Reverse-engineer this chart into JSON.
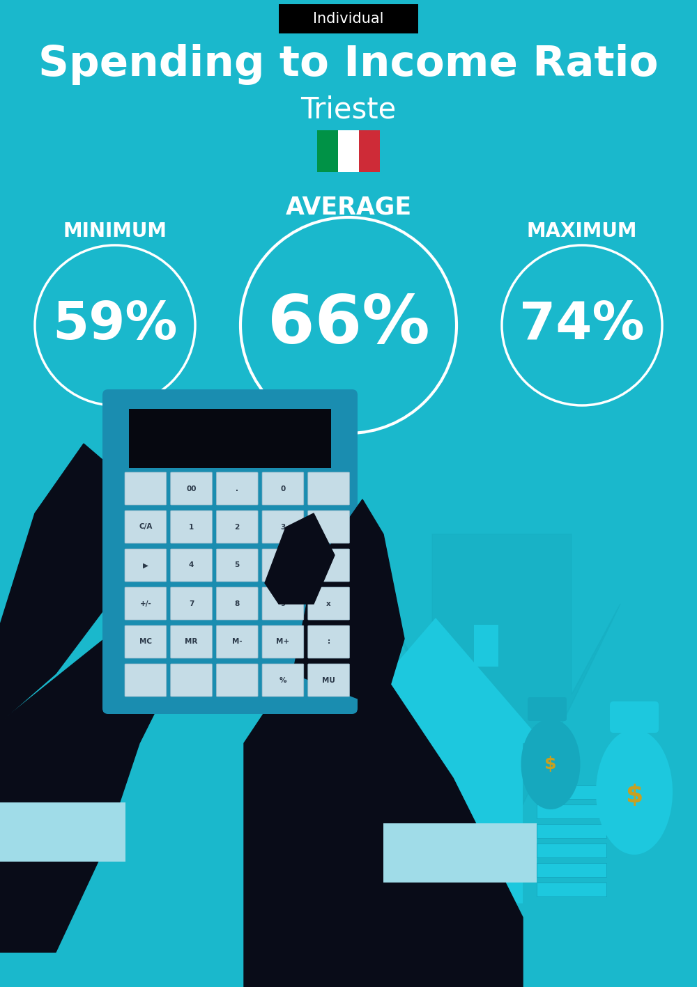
{
  "bg_color": "#1ab8cc",
  "title": "Spending to Income Ratio",
  "subtitle": "Trieste",
  "tag_text": "Individual",
  "tag_bg": "#000000",
  "tag_text_color": "#ffffff",
  "title_color": "#ffffff",
  "subtitle_color": "#ffffff",
  "avg_label": "AVERAGE",
  "min_label": "MINIMUM",
  "max_label": "MAXIMUM",
  "avg_value": "66%",
  "min_value": "59%",
  "max_value": "74%",
  "label_color": "#ffffff",
  "value_color": "#ffffff",
  "circle_color": "#ffffff",
  "title_fontsize": 44,
  "subtitle_fontsize": 30,
  "tag_fontsize": 15,
  "avg_label_fontsize": 25,
  "min_max_label_fontsize": 20,
  "avg_value_fontsize": 70,
  "min_max_value_fontsize": 54,
  "italy_flag_green": "#009246",
  "italy_flag_white": "#ffffff",
  "italy_flag_red": "#ce2b37",
  "arrow_color": "#17aec2",
  "calc_body_color": "#1a8db0",
  "calc_screen_color": "#060810",
  "btn_color": "#c5dce6",
  "btn_border": "#98b8c8",
  "hand_color": "#090c18",
  "cuff_color": "#a0dce8",
  "house_color": "#1dc8de",
  "house_shadow": "#1590a5",
  "bag_color": "#1dc8de",
  "bag2_color": "#16a8be",
  "dollar_color": "#c8a020",
  "stack_color": "#1dc8de",
  "stack_border": "#15a0b8"
}
